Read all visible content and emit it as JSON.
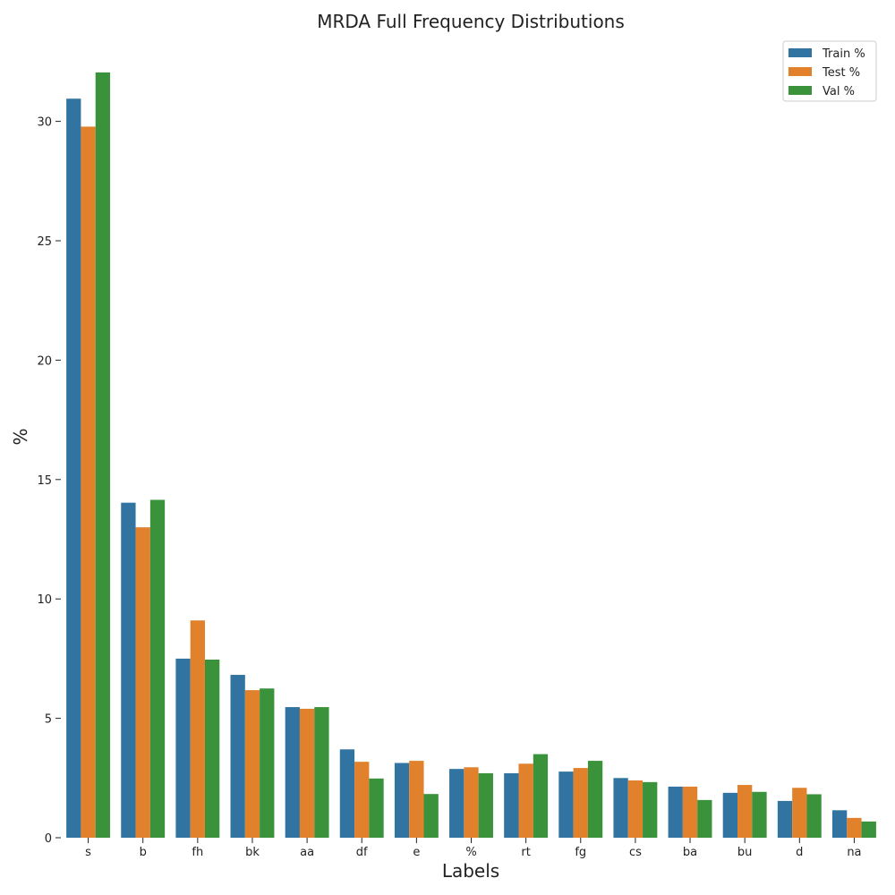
{
  "chart_data": {
    "type": "bar",
    "title": "MRDA Full Frequency Distributions",
    "xlabel": "Labels",
    "ylabel": "%",
    "ylim": [
      0,
      32
    ],
    "yticks": [
      0,
      5,
      10,
      15,
      20,
      25,
      30
    ],
    "grid": false,
    "legend_position": "top-right",
    "categories": [
      "s",
      "b",
      "fh",
      "bk",
      "aa",
      "df",
      "e",
      "%",
      "rt",
      "fg",
      "cs",
      "ba",
      "bu",
      "d",
      "na"
    ],
    "series": [
      {
        "name": "Train %",
        "color": "#3274a1",
        "values": [
          30.95,
          14.03,
          7.5,
          6.82,
          5.47,
          3.7,
          3.13,
          2.88,
          2.7,
          2.77,
          2.5,
          2.14,
          1.88,
          1.54,
          1.15
        ]
      },
      {
        "name": "Test %",
        "color": "#e1812c",
        "values": [
          29.78,
          13.0,
          9.1,
          6.18,
          5.4,
          3.18,
          3.22,
          2.95,
          3.1,
          2.92,
          2.4,
          2.14,
          2.21,
          2.09,
          0.83
        ]
      },
      {
        "name": "Val %",
        "color": "#3a923a",
        "values": [
          32.05,
          14.15,
          7.46,
          6.25,
          5.47,
          2.48,
          1.83,
          2.7,
          3.5,
          3.22,
          2.33,
          1.58,
          1.92,
          1.82,
          0.68
        ]
      }
    ]
  }
}
